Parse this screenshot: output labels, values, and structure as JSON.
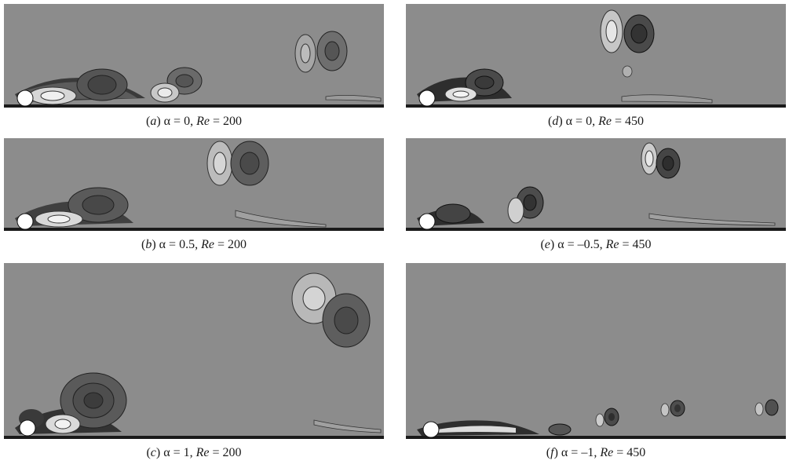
{
  "figure": {
    "background": "#8c8c8c",
    "panels": [
      {
        "id": "a",
        "label": "a",
        "alpha": "0",
        "re": "200"
      },
      {
        "id": "d",
        "label": "d",
        "alpha": "0",
        "re": "450"
      },
      {
        "id": "b",
        "label": "b",
        "alpha": "0.5",
        "re": "200"
      },
      {
        "id": "e",
        "label": "e",
        "alpha": "–0.5",
        "re": "450"
      },
      {
        "id": "c",
        "label": "c",
        "alpha": "1",
        "re": "200"
      },
      {
        "id": "f",
        "label": "f",
        "alpha": "–1",
        "re": "450"
      }
    ],
    "alpha_symbol": "α",
    "re_symbol": "Re",
    "equals": "="
  }
}
